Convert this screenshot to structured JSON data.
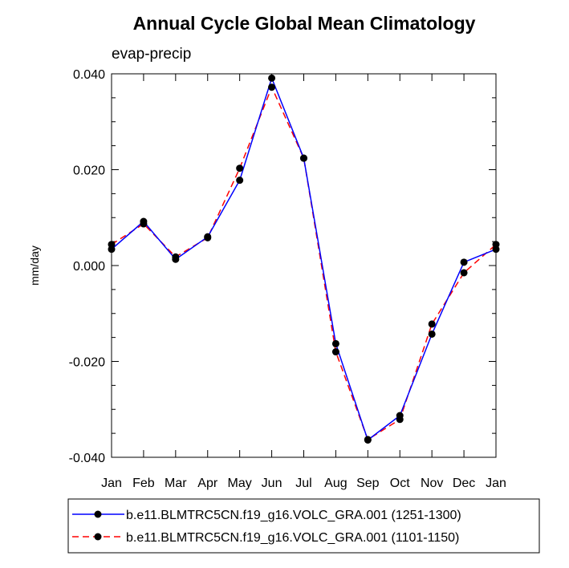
{
  "chart_data": {
    "type": "line",
    "title": "Annual Cycle Global Mean Climatology",
    "subtitle": "evap-precip",
    "xlabel": "",
    "ylabel": "mm/day",
    "categories": [
      "Jan",
      "Feb",
      "Mar",
      "Apr",
      "May",
      "Jun",
      "Jul",
      "Aug",
      "Sep",
      "Oct",
      "Nov",
      "Dec",
      "Jan"
    ],
    "yticks": [
      "0.040",
      "0.020",
      "0.000",
      "-0.020",
      "-0.040"
    ],
    "ylim": [
      -0.04,
      0.04
    ],
    "grid": false,
    "legend_position": "bottom",
    "series": [
      {
        "name": "b.e11.BLMTRC5CN.f19_g16.VOLC_GRA.001 (1251-1300)",
        "color": "#0000ff",
        "line_style": "solid",
        "values": [
          0.0034,
          0.0092,
          0.0013,
          0.006,
          0.0178,
          0.0391,
          0.0224,
          -0.0163,
          -0.0364,
          -0.0313,
          -0.0143,
          0.0007,
          0.0034
        ]
      },
      {
        "name": "b.e11.BLMTRC5CN.f19_g16.VOLC_GRA.001 (1101-1150)",
        "color": "#ff0000",
        "line_style": "dashed",
        "values": [
          0.0044,
          0.0087,
          0.0018,
          0.0058,
          0.0203,
          0.0372,
          0.0224,
          -0.018,
          -0.0363,
          -0.0321,
          -0.0122,
          -0.0015,
          0.0044
        ]
      }
    ]
  }
}
